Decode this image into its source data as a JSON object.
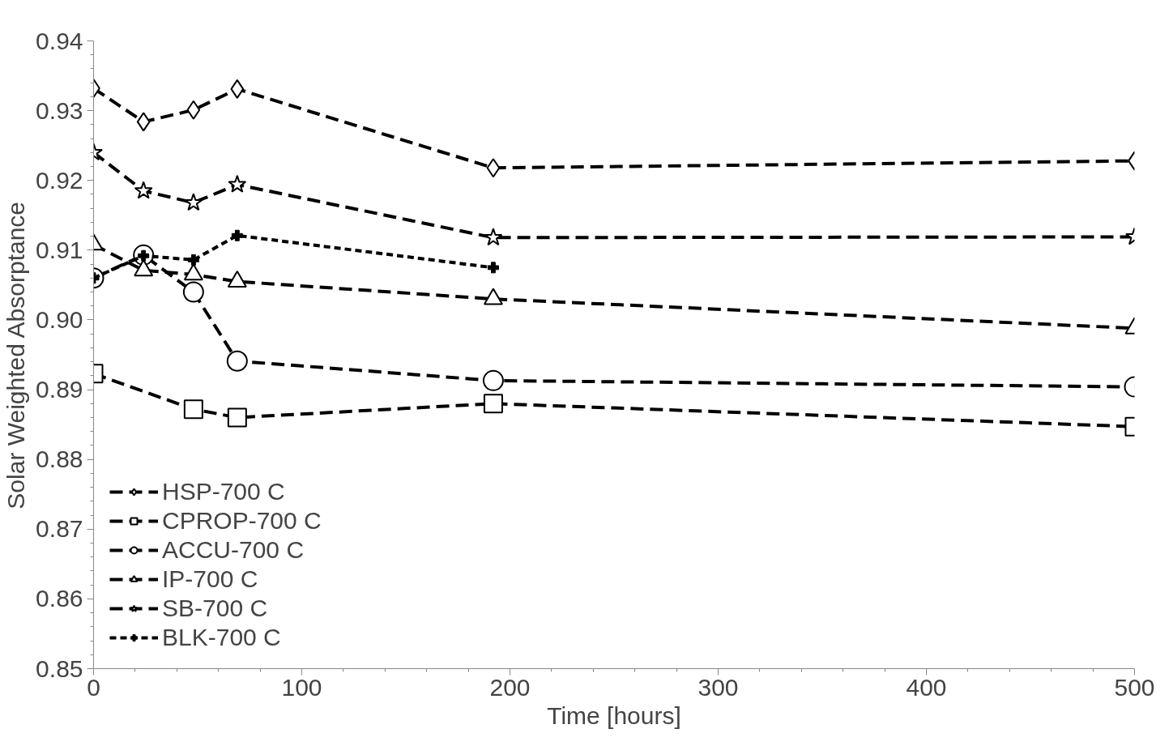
{
  "chart_data": {
    "type": "line",
    "xlabel": "Time [hours]",
    "ylabel": "Solar Weighted Absorptance",
    "xlim": [
      0,
      500
    ],
    "xticks": [
      0,
      100,
      200,
      300,
      400,
      500
    ],
    "ylim": [
      0.85,
      0.94
    ],
    "yticks": [
      0.85,
      0.86,
      0.87,
      0.88,
      0.89,
      {
        "value": 0.9,
        "label": "0.90"
      },
      0.91,
      0.92,
      0.93,
      0.94
    ],
    "grid": false,
    "legend": "bottom left",
    "series": [
      {
        "name": "HSP-700 C",
        "color": "#000000",
        "marker": "diamond",
        "line_style": "dashed",
        "x": [
          0,
          24,
          48,
          69,
          192,
          500
        ],
        "values": [
          0.9332,
          0.9284,
          0.9301,
          0.9331,
          0.9218,
          0.9228
        ]
      },
      {
        "name": "CPROP-700 C",
        "color": "#000000",
        "marker": "square",
        "line_style": "dashed",
        "x": [
          0,
          48,
          69,
          192,
          500
        ],
        "values": [
          0.8923,
          0.8872,
          0.886,
          0.888,
          0.8847
        ]
      },
      {
        "name": "ACCU-700 C",
        "color": "#000000",
        "marker": "circle",
        "line_style": "dashed",
        "x": [
          0,
          24,
          48,
          69,
          192,
          500
        ],
        "values": [
          0.906,
          0.9093,
          0.904,
          0.8941,
          0.8913,
          0.8904
        ]
      },
      {
        "name": "IP-700 C",
        "color": "#000000",
        "marker": "triangle",
        "line_style": "dashed",
        "x": [
          0,
          24,
          48,
          69,
          192,
          500
        ],
        "values": [
          0.9108,
          0.9071,
          0.9065,
          0.9055,
          0.903,
          0.8988
        ]
      },
      {
        "name": "SB-700 C",
        "color": "#000000",
        "marker": "star",
        "line_style": "dashed",
        "x": [
          0,
          24,
          48,
          69,
          192,
          500
        ],
        "values": [
          0.924,
          0.9185,
          0.9168,
          0.9194,
          0.9118,
          0.9119
        ]
      },
      {
        "name": "BLK-700 C",
        "color": "#000000",
        "marker": "cross",
        "line_style": "dotted",
        "x": [
          0,
          24,
          48,
          69,
          192
        ],
        "values": [
          0.906,
          0.9092,
          0.9086,
          0.9121,
          0.9075
        ]
      }
    ]
  }
}
